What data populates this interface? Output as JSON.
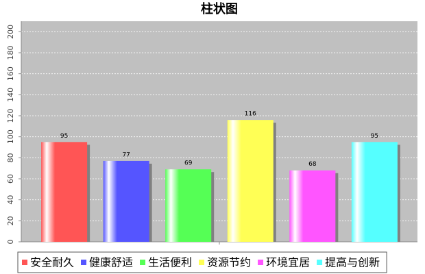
{
  "chart_data": {
    "type": "bar",
    "title": "柱状图",
    "categories": [
      null
    ],
    "series": [
      {
        "name": "安全耐久",
        "color": "#ff5555",
        "values": [
          95
        ]
      },
      {
        "name": "健康舒适",
        "color": "#5555ff",
        "values": [
          77
        ]
      },
      {
        "name": "生活便利",
        "color": "#55ff55",
        "values": [
          69
        ]
      },
      {
        "name": "资源节约",
        "color": "#ffff55",
        "values": [
          116
        ]
      },
      {
        "name": "环境宜居",
        "color": "#ff55ff",
        "values": [
          68
        ]
      },
      {
        "name": "提高与创新",
        "color": "#55ffff",
        "values": [
          95
        ]
      }
    ],
    "ylim": [
      0,
      210
    ],
    "yticks": [
      0,
      20,
      40,
      60,
      80,
      100,
      120,
      140,
      160,
      180,
      200
    ],
    "grid": true,
    "legend": "bottom"
  }
}
